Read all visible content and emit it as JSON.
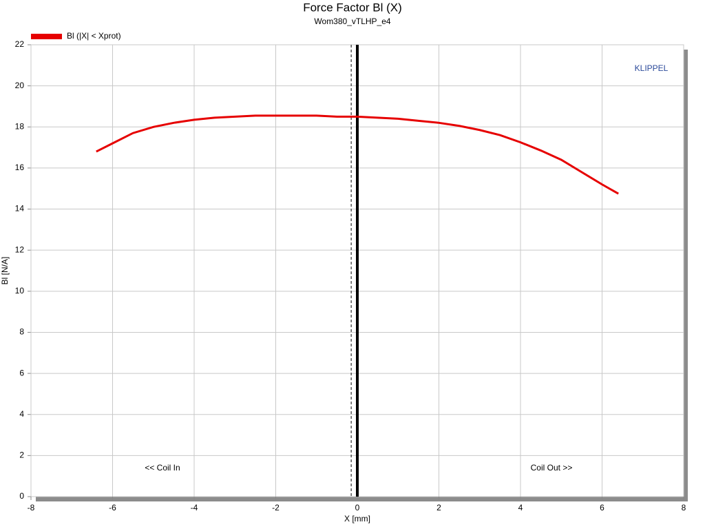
{
  "chart_data": {
    "type": "line",
    "title": "Force Factor Bl (X)",
    "subtitle": "Wom380_vTLHP_e4",
    "x_label": "X [mm]",
    "y_label": "Bl [N/A]",
    "xlim": [
      -8,
      8
    ],
    "xticks": [
      -8,
      -6,
      -4,
      -2,
      0,
      2,
      4,
      6,
      8
    ],
    "ylim": [
      0,
      22
    ],
    "yticks": [
      0,
      2,
      4,
      6,
      8,
      10,
      12,
      14,
      16,
      18,
      20,
      22
    ],
    "grid": true,
    "legend": "top-left",
    "series": [
      {
        "name": "Bl (|X| < Xprot)",
        "color": "#e60000",
        "x": [
          -6.4,
          -6,
          -5.5,
          -5,
          -4.5,
          -4,
          -3.5,
          -3,
          -2.5,
          -2,
          -1.5,
          -1,
          -0.5,
          0,
          0.5,
          1,
          1.5,
          2,
          2.5,
          3,
          3.5,
          4,
          4.5,
          5,
          5.5,
          6,
          6.4
        ],
        "values": [
          16.8,
          17.2,
          17.7,
          18.0,
          18.2,
          18.35,
          18.45,
          18.5,
          18.55,
          18.55,
          18.55,
          18.55,
          18.5,
          18.5,
          18.45,
          18.4,
          18.3,
          18.2,
          18.05,
          17.85,
          17.6,
          17.25,
          16.85,
          16.4,
          15.8,
          15.2,
          14.75
        ]
      }
    ],
    "vlines": [
      {
        "x": -0.15,
        "dashed": true,
        "color": "#000000"
      },
      {
        "x": 0,
        "dashed": false,
        "color": "#000000"
      }
    ],
    "annotations": [
      "<< Coil In",
      "Coil Out >>",
      "KLIPPEL"
    ]
  }
}
